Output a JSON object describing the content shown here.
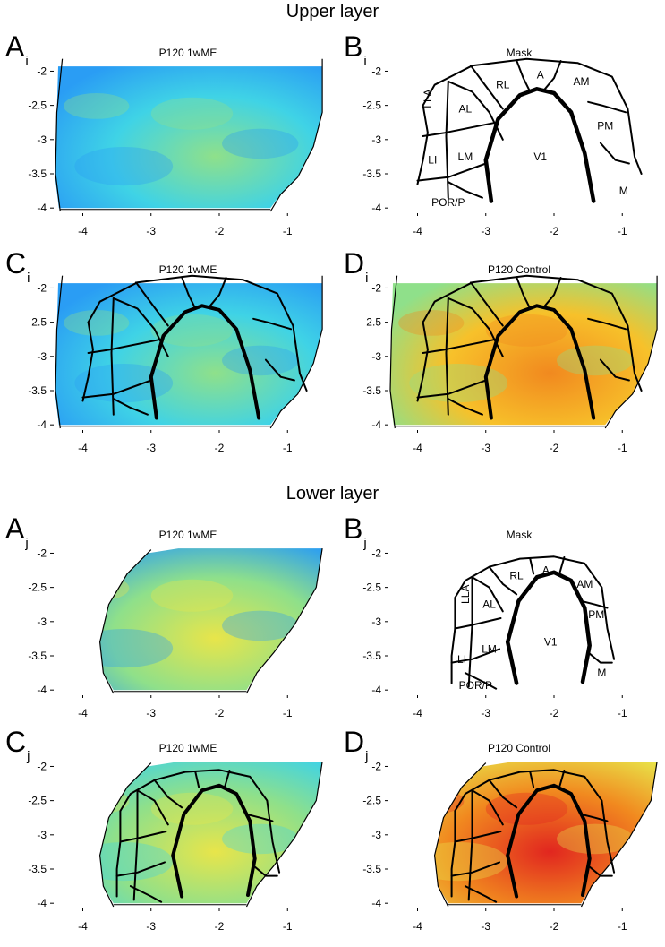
{
  "sections": [
    {
      "title": "Upper layer",
      "subscript": "i"
    },
    {
      "title": "Lower layer",
      "subscript": "j"
    }
  ],
  "colormap": [
    "#1f3fd6",
    "#2a9df4",
    "#3fd3e6",
    "#8fe08a",
    "#e8e54a",
    "#f7c12a",
    "#f1891f",
    "#e1261f"
  ],
  "mask_color": "#000000",
  "chart_data": [
    {
      "id": "A_i",
      "panel": "A",
      "subscript": "i",
      "type": "heatmap",
      "title": "P120 1wME",
      "xlim": [
        -4.4,
        -0.4
      ],
      "ylim": [
        -4.05,
        -1.85
      ],
      "xticks": [
        "-4",
        "-3",
        "-2",
        "-1"
      ],
      "yticks": [
        "-2",
        "-2.5",
        "-3",
        "-3.5",
        "-4"
      ],
      "mask": false,
      "mean_level": 0.33,
      "variant": "upper"
    },
    {
      "id": "B_i",
      "panel": "B",
      "subscript": "i",
      "type": "diagram",
      "title": "Mask",
      "xlim": [
        -4.4,
        -0.4
      ],
      "ylim": [
        -4.05,
        -1.85
      ],
      "xticks": [
        "-4",
        "-3",
        "-2",
        "-1"
      ],
      "yticks": [
        "-2",
        "-2.5",
        "-3",
        "-3.5",
        "-4"
      ],
      "areas": [
        "LLA",
        "AL",
        "RL",
        "A",
        "AM",
        "PM",
        "LI",
        "LM",
        "V1",
        "M",
        "POR/P"
      ],
      "variant": "upper"
    },
    {
      "id": "C_i",
      "panel": "C",
      "subscript": "i",
      "type": "heatmap",
      "title": "P120 1wME",
      "xlim": [
        -4.4,
        -0.4
      ],
      "ylim": [
        -4.05,
        -1.85
      ],
      "xticks": [
        "-4",
        "-3",
        "-2",
        "-1"
      ],
      "yticks": [
        "-2",
        "-2.5",
        "-3",
        "-3.5",
        "-4"
      ],
      "mask": true,
      "mean_level": 0.33,
      "variant": "upper"
    },
    {
      "id": "D_i",
      "panel": "D",
      "subscript": "i",
      "type": "heatmap",
      "title": "P120 Control",
      "xlim": [
        -4.4,
        -0.4
      ],
      "ylim": [
        -4.05,
        -1.85
      ],
      "xticks": [
        "-4",
        "-3",
        "-2",
        "-1"
      ],
      "yticks": [
        "-2",
        "-2.5",
        "-3",
        "-3.5",
        "-4"
      ],
      "mask": true,
      "mean_level": 0.68,
      "variant": "upper"
    },
    {
      "id": "A_j",
      "panel": "A",
      "subscript": "j",
      "type": "heatmap",
      "title": "P120 1wME",
      "xlim": [
        -4.4,
        -0.4
      ],
      "ylim": [
        -4.05,
        -1.85
      ],
      "xticks": [
        "-4",
        "-3",
        "-2",
        "-1"
      ],
      "yticks": [
        "-2",
        "-2.5",
        "-3",
        "-3.5",
        "-4"
      ],
      "mask": false,
      "mean_level": 0.42,
      "variant": "lower"
    },
    {
      "id": "B_j",
      "panel": "B",
      "subscript": "j",
      "type": "diagram",
      "title": "Mask",
      "xlim": [
        -4.4,
        -0.4
      ],
      "ylim": [
        -4.05,
        -1.85
      ],
      "xticks": [
        "-4",
        "-3",
        "-2",
        "-1"
      ],
      "yticks": [
        "-2",
        "-2.5",
        "-3",
        "-3.5",
        "-4"
      ],
      "areas": [
        "LLA",
        "AL",
        "RL",
        "A",
        "AM",
        "PM",
        "LI",
        "LM",
        "V1",
        "M",
        "POR/P"
      ],
      "variant": "lower"
    },
    {
      "id": "C_j",
      "panel": "C",
      "subscript": "j",
      "type": "heatmap",
      "title": "P120 1wME",
      "xlim": [
        -4.4,
        -0.4
      ],
      "ylim": [
        -4.05,
        -1.85
      ],
      "xticks": [
        "-4",
        "-3",
        "-2",
        "-1"
      ],
      "yticks": [
        "-2",
        "-2.5",
        "-3",
        "-3.5",
        "-4"
      ],
      "mask": true,
      "mean_level": 0.45,
      "variant": "lower"
    },
    {
      "id": "D_j",
      "panel": "D",
      "subscript": "j",
      "type": "heatmap",
      "title": "P120 Control",
      "xlim": [
        -4.4,
        -0.4
      ],
      "ylim": [
        -4.05,
        -1.85
      ],
      "xticks": [
        "-4",
        "-3",
        "-2",
        "-1"
      ],
      "yticks": [
        "-2",
        "-2.5",
        "-3",
        "-3.5",
        "-4"
      ],
      "mask": true,
      "mean_level": 0.8,
      "variant": "lower"
    }
  ]
}
